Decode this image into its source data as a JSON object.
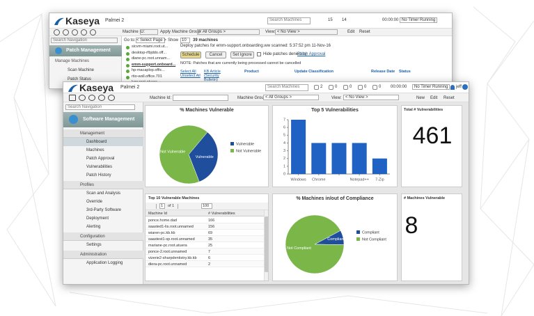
{
  "back_window": {
    "logo": "Kaseya",
    "tenant": "Palmei 2",
    "search": "Search Machines",
    "counts": [
      "15",
      "14"
    ],
    "timer": "00:00:00",
    "timer_status": "No Timer Running",
    "search_nav": "Search Navigation",
    "module": "Patch Management",
    "nav": [
      "Manage Machines",
      "Scan Machine",
      "Patch Status"
    ],
    "toolbar": {
      "machine_id_label": "Machine ID:",
      "apply": "Apply",
      "machine_group_label": "Machine Group",
      "machine_group": "< All Groups >",
      "view_label": "View:",
      "view": "< No View >",
      "edit": "Edit",
      "reset": "Reset"
    },
    "go_to": "Go to:",
    "select_page": "< Select Page >",
    "show": "Show",
    "show_count": "10",
    "machines_count": "39 machines",
    "machines": [
      "sicvm-miami.root.ut...",
      "desktop-rfbjddo.off...",
      "diane-pc.root.unnam...",
      "emm-support.onboard...",
      "hp-macaplop.offic...",
      "rtio-wsll.office.701",
      "lupr.root.atuera"
    ],
    "deploy_text": "Deploy patches for emm-support.onboarding.ww scanned: 5:37:52 pm 11-Nov-16",
    "buttons": [
      "Schedule",
      "Cancel",
      "Set Ignore"
    ],
    "hide_text": "Hide patches denied by",
    "hide_link": "Patch Approval",
    "note": "NOTE: Patches that are currently being processed cannot be cancelled",
    "columns": [
      "Select All Unselect All",
      "KB Article (Security Bulletin)",
      "Product",
      "Update Classification",
      "Release Date",
      "Status"
    ]
  },
  "front_window": {
    "logo": "Kaseya",
    "tenant": "Palmei 2",
    "search": "Search Machines",
    "counts": [
      "2",
      "0",
      "0",
      "0",
      "0"
    ],
    "timer": "00:00:00",
    "timer_status": "No Timer Running",
    "user": "jeff",
    "toolbar": {
      "machine_id_label": "Machine Id:",
      "machine_group_label": "Machine Group:",
      "machine_group": "< All Groups >",
      "view_label": "View:",
      "view": "< No View >",
      "new": "New",
      "edit": "Edit",
      "reset": "Reset"
    },
    "sidebar": {
      "search": "Search Navigation",
      "module": "Software Management",
      "sections": [
        {
          "title": "Management",
          "items": [
            "Dashboard",
            "Machines",
            "Patch Approval",
            "Vulnerabilities",
            "Patch History"
          ]
        },
        {
          "title": "Profiles",
          "items": [
            "Scan and Analysis",
            "Override",
            "3rd-Party Software",
            "Deployment",
            "Alerting"
          ]
        },
        {
          "title": "Configuration",
          "items": [
            "Settings"
          ]
        },
        {
          "title": "Administration",
          "items": [
            "Application Logging"
          ]
        }
      ]
    }
  },
  "chart_data": [
    {
      "type": "pie",
      "title": "% Machines Vulnerable",
      "categories": [
        "Vulnerable",
        "Not Vulnerable"
      ],
      "values": [
        33,
        67
      ],
      "colors": [
        "#1f4e9c",
        "#7ab648"
      ]
    },
    {
      "type": "bar",
      "title": "Top 5 Vulnerabilities",
      "categories": [
        "Windows",
        "Chrome",
        null,
        "Notepad++",
        "7-Zip"
      ],
      "values": [
        7,
        4,
        4,
        4,
        2
      ],
      "color": "#1f62c4",
      "ylim": [
        0,
        7
      ],
      "yticks": [
        0,
        1,
        2,
        3,
        4,
        5,
        6,
        7
      ]
    },
    {
      "type": "pie",
      "title": "% Machines in/out of Compliance",
      "categories": [
        "Compliant",
        "Not Compliant"
      ],
      "values": [
        8,
        92
      ],
      "colors": [
        "#1f4e9c",
        "#7ab648"
      ]
    }
  ],
  "dashboard": {
    "total_vulnerabilities": {
      "title": "Total # Vulnerabilities",
      "value": 461
    },
    "machines_vulnerable": {
      "title": "# Machines Vulnerable",
      "value": 8
    },
    "top_machines": {
      "title": "Top 10 Vulnerable Machines",
      "page": "1",
      "of": "of 1",
      "page_size": "100",
      "columns": [
        "Machine Id",
        "# Vulnerabilities"
      ],
      "rows": [
        [
          "ponce.home.dad",
          166
        ],
        [
          "saasted1-lis.root.unnamed",
          156
        ],
        [
          "wiaren-pc.kb.kb",
          69
        ],
        [
          "saastest1-sp.root.unnamed",
          35
        ],
        [
          "mariane-pc.root.atuera",
          25
        ],
        [
          "ponce-2.root.unnamed",
          7
        ],
        [
          "vizerie2-sharpdentistry.kb.kb",
          6
        ],
        [
          "diera-pc.root.unnamed",
          2
        ]
      ]
    }
  }
}
